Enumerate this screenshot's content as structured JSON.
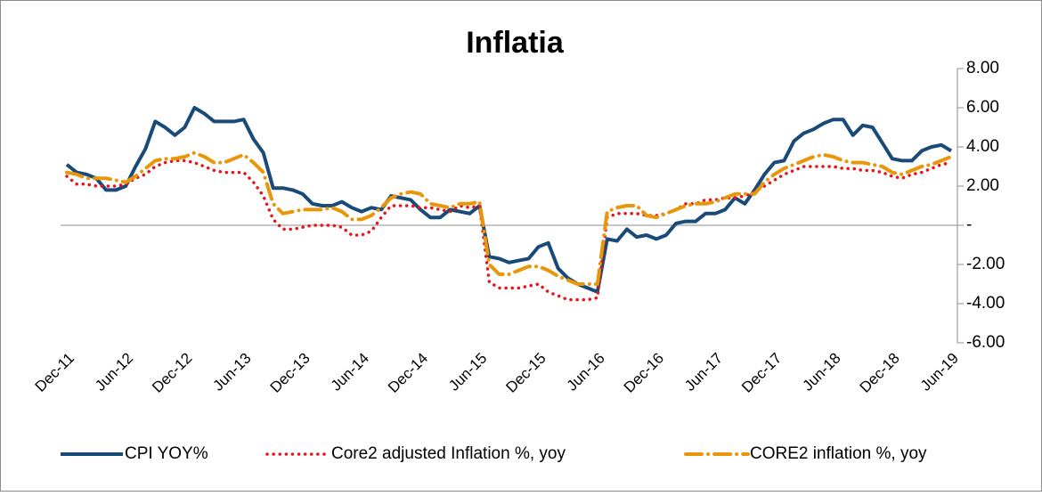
{
  "chart_data": {
    "type": "line",
    "title": "Inflatia",
    "categories": [
      "Dec-11",
      null,
      null,
      null,
      null,
      null,
      "Jun-12",
      null,
      null,
      null,
      null,
      null,
      "Dec-12",
      null,
      null,
      null,
      null,
      null,
      "Jun-13",
      null,
      null,
      null,
      null,
      null,
      "Dec-13",
      null,
      null,
      null,
      null,
      null,
      "Jun-14",
      null,
      null,
      null,
      null,
      null,
      "Dec-14",
      null,
      null,
      null,
      null,
      null,
      "Jun-15",
      null,
      null,
      null,
      null,
      null,
      "Dec-15",
      null,
      null,
      null,
      null,
      null,
      "Jun-16",
      null,
      null,
      null,
      null,
      null,
      "Dec-16",
      null,
      null,
      null,
      null,
      null,
      "Jun-17",
      null,
      null,
      null,
      null,
      null,
      "Dec-17",
      null,
      null,
      null,
      null,
      null,
      "Jun-18",
      null,
      null,
      null,
      null,
      null,
      "Dec-18",
      null,
      null,
      null,
      null,
      null,
      "Jun-19"
    ],
    "series": [
      {
        "name": "CPI YOY%",
        "color": "#1a4a78",
        "dash": "solid",
        "values": [
          3.1,
          2.7,
          2.6,
          2.4,
          1.8,
          1.8,
          2.0,
          3.0,
          3.9,
          5.3,
          5.0,
          4.6,
          5.0,
          6.0,
          5.7,
          5.3,
          5.3,
          5.3,
          5.4,
          4.4,
          3.7,
          1.9,
          1.9,
          1.8,
          1.6,
          1.1,
          1.0,
          1.0,
          1.2,
          0.9,
          0.7,
          0.9,
          0.8,
          1.5,
          1.4,
          1.3,
          0.8,
          0.4,
          0.4,
          0.8,
          0.7,
          0.6,
          1.0,
          -1.6,
          -1.7,
          -1.9,
          -1.8,
          -1.7,
          -1.1,
          -0.9,
          -2.2,
          -2.7,
          -3.0,
          -3.2,
          -3.4,
          -0.7,
          -0.8,
          -0.2,
          -0.6,
          -0.5,
          -0.7,
          -0.5,
          0.1,
          0.2,
          0.2,
          0.6,
          0.6,
          0.8,
          1.4,
          1.1,
          1.8,
          2.6,
          3.2,
          3.3,
          4.3,
          4.7,
          4.9,
          5.2,
          5.4,
          5.4,
          4.6,
          5.1,
          5.0,
          4.2,
          3.4,
          3.3,
          3.3,
          3.8,
          4.0,
          4.1,
          3.8
        ]
      },
      {
        "name": "Core2 adjusted Inflation %, yoy",
        "color": "#e8141c",
        "dash": "dotted",
        "values": [
          2.5,
          2.1,
          2.1,
          2.0,
          2.0,
          2.0,
          2.1,
          2.4,
          2.6,
          3.0,
          3.2,
          3.3,
          3.3,
          3.2,
          3.0,
          2.8,
          2.7,
          2.7,
          2.7,
          2.2,
          1.5,
          0.3,
          -0.2,
          -0.2,
          -0.1,
          0.0,
          0.0,
          0.0,
          -0.1,
          -0.5,
          -0.5,
          -0.3,
          0.4,
          1.0,
          1.0,
          1.0,
          0.9,
          0.9,
          0.8,
          0.7,
          1.0,
          0.9,
          1.0,
          -2.9,
          -3.2,
          -3.2,
          -3.2,
          -3.1,
          -3.0,
          -3.4,
          -3.6,
          -3.8,
          -3.8,
          -3.8,
          -3.7,
          0.4,
          0.6,
          0.6,
          0.6,
          0.5,
          0.5,
          0.6,
          0.8,
          1.1,
          1.1,
          1.3,
          1.3,
          1.4,
          1.4,
          1.5,
          1.7,
          2.0,
          2.3,
          2.6,
          2.8,
          3.0,
          3.0,
          3.0,
          3.0,
          2.9,
          2.9,
          2.8,
          2.8,
          2.7,
          2.5,
          2.4,
          2.6,
          2.7,
          2.9,
          3.1,
          3.2
        ]
      },
      {
        "name": "CORE2 inflation %, yoy",
        "color": "#e8960a",
        "dash": "dash-dot",
        "values": [
          2.7,
          2.6,
          2.4,
          2.4,
          2.4,
          2.3,
          2.2,
          2.5,
          2.9,
          3.3,
          3.4,
          3.4,
          3.5,
          3.7,
          3.5,
          3.2,
          3.2,
          3.4,
          3.6,
          3.2,
          2.7,
          1.1,
          0.6,
          0.7,
          0.8,
          0.8,
          0.8,
          0.9,
          0.7,
          0.3,
          0.3,
          0.5,
          0.9,
          1.4,
          1.6,
          1.7,
          1.6,
          1.1,
          1.0,
          0.9,
          1.1,
          1.1,
          1.2,
          -2.0,
          -2.5,
          -2.5,
          -2.3,
          -2.1,
          -2.1,
          -2.3,
          -2.6,
          -2.8,
          -3.0,
          -3.0,
          -3.0,
          0.7,
          0.9,
          1.0,
          1.0,
          0.5,
          0.4,
          0.6,
          0.8,
          1.0,
          1.1,
          1.1,
          1.2,
          1.4,
          1.6,
          1.6,
          1.6,
          2.2,
          2.6,
          2.9,
          3.1,
          3.3,
          3.5,
          3.6,
          3.5,
          3.3,
          3.2,
          3.2,
          3.1,
          3.0,
          2.7,
          2.6,
          2.8,
          3.0,
          3.1,
          3.3,
          3.5
        ]
      }
    ],
    "ylim": [
      -6,
      8
    ],
    "yticks": [
      {
        "value": -6,
        "label": "-6.00"
      },
      {
        "value": -4,
        "label": "-4.00"
      },
      {
        "value": -2,
        "label": "-2.00"
      },
      {
        "value": 0,
        "label": "-"
      },
      {
        "value": 2,
        "label": "2.00"
      },
      {
        "value": 4,
        "label": "4.00"
      },
      {
        "value": 6,
        "label": "6.00"
      },
      {
        "value": 8,
        "label": "8.00"
      }
    ],
    "y_axis_side": "right",
    "legend": "bottom"
  }
}
